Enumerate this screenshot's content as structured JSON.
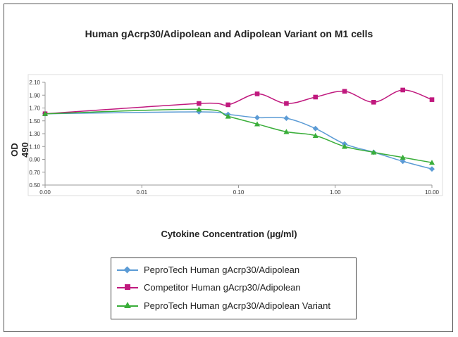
{
  "chart_data": {
    "type": "line",
    "title": "Human gAcrp30/Adipolean and Adipolean Variant on M1 cells",
    "xlabel": "Cytokine Concentration (µg/ml)",
    "ylabel": "OD 490",
    "x_scale": "log",
    "x_ticks": [
      0.001,
      0.01,
      0.1,
      1,
      10
    ],
    "x_tick_labels": [
      "0.00",
      "0.01",
      "0.10",
      "1.00",
      "10.00"
    ],
    "ylim": [
      0.5,
      2.1
    ],
    "y_ticks": [
      0.5,
      0.7,
      0.9,
      1.1,
      1.3,
      1.5,
      1.7,
      1.9,
      2.1
    ],
    "y_tick_labels": [
      "0.50",
      "0.70",
      "0.90",
      "1.10",
      "1.30",
      "1.50",
      "1.70",
      "1.90",
      "2.10"
    ],
    "grid": false,
    "legend_position": "bottom",
    "series": [
      {
        "name": "PeproTech Human gAcrp30/Adipolean",
        "color": "#5b9bd5",
        "marker": "diamond",
        "x": [
          0.001,
          0.039,
          0.078,
          0.156,
          0.3125,
          0.625,
          1.25,
          2.5,
          5,
          10
        ],
        "y": [
          1.61,
          1.64,
          1.6,
          1.55,
          1.54,
          1.38,
          1.14,
          1.01,
          0.87,
          0.75
        ]
      },
      {
        "name": "Competitor Human gAcrp30/Adipolean",
        "color": "#c0197e",
        "marker": "square",
        "x": [
          0.001,
          0.039,
          0.078,
          0.156,
          0.3125,
          0.625,
          1.25,
          2.5,
          5,
          10
        ],
        "y": [
          1.61,
          1.77,
          1.75,
          1.92,
          1.77,
          1.87,
          1.96,
          1.79,
          1.98,
          1.83
        ]
      },
      {
        "name": "PeproTech Human gAcrp30/Adipolean Variant",
        "color": "#3aae3a",
        "marker": "triangle",
        "x": [
          0.001,
          0.039,
          0.078,
          0.156,
          0.3125,
          0.625,
          1.25,
          2.5,
          5,
          10
        ],
        "y": [
          1.61,
          1.68,
          1.57,
          1.45,
          1.33,
          1.27,
          1.1,
          1.01,
          0.93,
          0.85
        ]
      }
    ]
  }
}
